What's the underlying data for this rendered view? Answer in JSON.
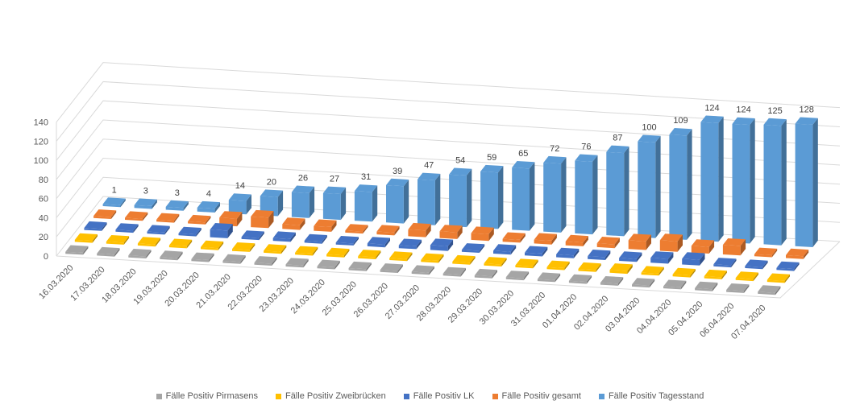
{
  "chart_data": {
    "type": "bar",
    "variant": "3d-column",
    "title": "",
    "xlabel": "",
    "ylabel": "",
    "ylim": [
      0,
      140
    ],
    "yticks": [
      0,
      20,
      40,
      60,
      80,
      100,
      120,
      140
    ],
    "grid": true,
    "legend_position": "bottom",
    "categories": [
      "16.03.2020",
      "17.03.2020",
      "18.03.2020",
      "19.03.2020",
      "20.03.2020",
      "21.03.2020",
      "22.03.2020",
      "23.03.2020",
      "24.03.2020",
      "25.03.2020",
      "26.03.2020",
      "27.03.2020",
      "28.03.2020",
      "29.03.2020",
      "30.03.2020",
      "31.03.2020",
      "01.04.2020",
      "02.04.2020",
      "03.04.2020",
      "04.04.2020",
      "05.04.2020",
      "06.04.2020",
      "07.04.2020"
    ],
    "series": [
      {
        "name": "Fälle Positiv Pirmasens",
        "color": "#a5a5a5",
        "values": [
          0,
          0,
          0,
          0,
          0,
          2,
          1,
          0,
          0,
          2,
          1,
          0,
          0,
          2,
          0,
          0,
          1,
          1,
          0,
          2,
          0,
          0,
          0
        ]
      },
      {
        "name": "Fälle Positiv Zweibrücken",
        "color": "#ffc000",
        "values": [
          0,
          0,
          0,
          0,
          0,
          1,
          1,
          0,
          0,
          1,
          1,
          2,
          0,
          0,
          1,
          1,
          1,
          3,
          1,
          2,
          0,
          0,
          1
        ]
      },
      {
        "name": "Fälle Positiv LK",
        "color": "#4472c4",
        "values": [
          1,
          2,
          0,
          0,
          8,
          0,
          3,
          2,
          1,
          3,
          3,
          5,
          2,
          3,
          3,
          3,
          3,
          3,
          5,
          6,
          0,
          0,
          1
        ]
      },
      {
        "name": "Fälle Positiv gesamt",
        "color": "#ed7d31",
        "values": [
          1,
          2,
          0,
          0,
          8,
          11,
          5,
          5,
          1,
          3,
          7,
          7,
          7,
          3,
          4,
          4,
          4,
          9,
          11,
          7,
          10,
          0,
          3
        ]
      },
      {
        "name": "Fälle Positiv Tagesstand",
        "color": "#5b9bd5",
        "values": [
          1,
          3,
          3,
          4,
          14,
          20,
          26,
          27,
          31,
          39,
          47,
          54,
          59,
          65,
          72,
          76,
          87,
          100,
          109,
          124,
          124,
          125,
          128
        ],
        "labels": [
          "1",
          "3",
          "3",
          "4",
          "14",
          "20",
          "26",
          "27",
          "31",
          "39",
          "47",
          "54",
          "59",
          "65",
          "72",
          "76",
          "87",
          "100",
          "109",
          "124",
          "124",
          "125",
          "128"
        ]
      }
    ]
  }
}
